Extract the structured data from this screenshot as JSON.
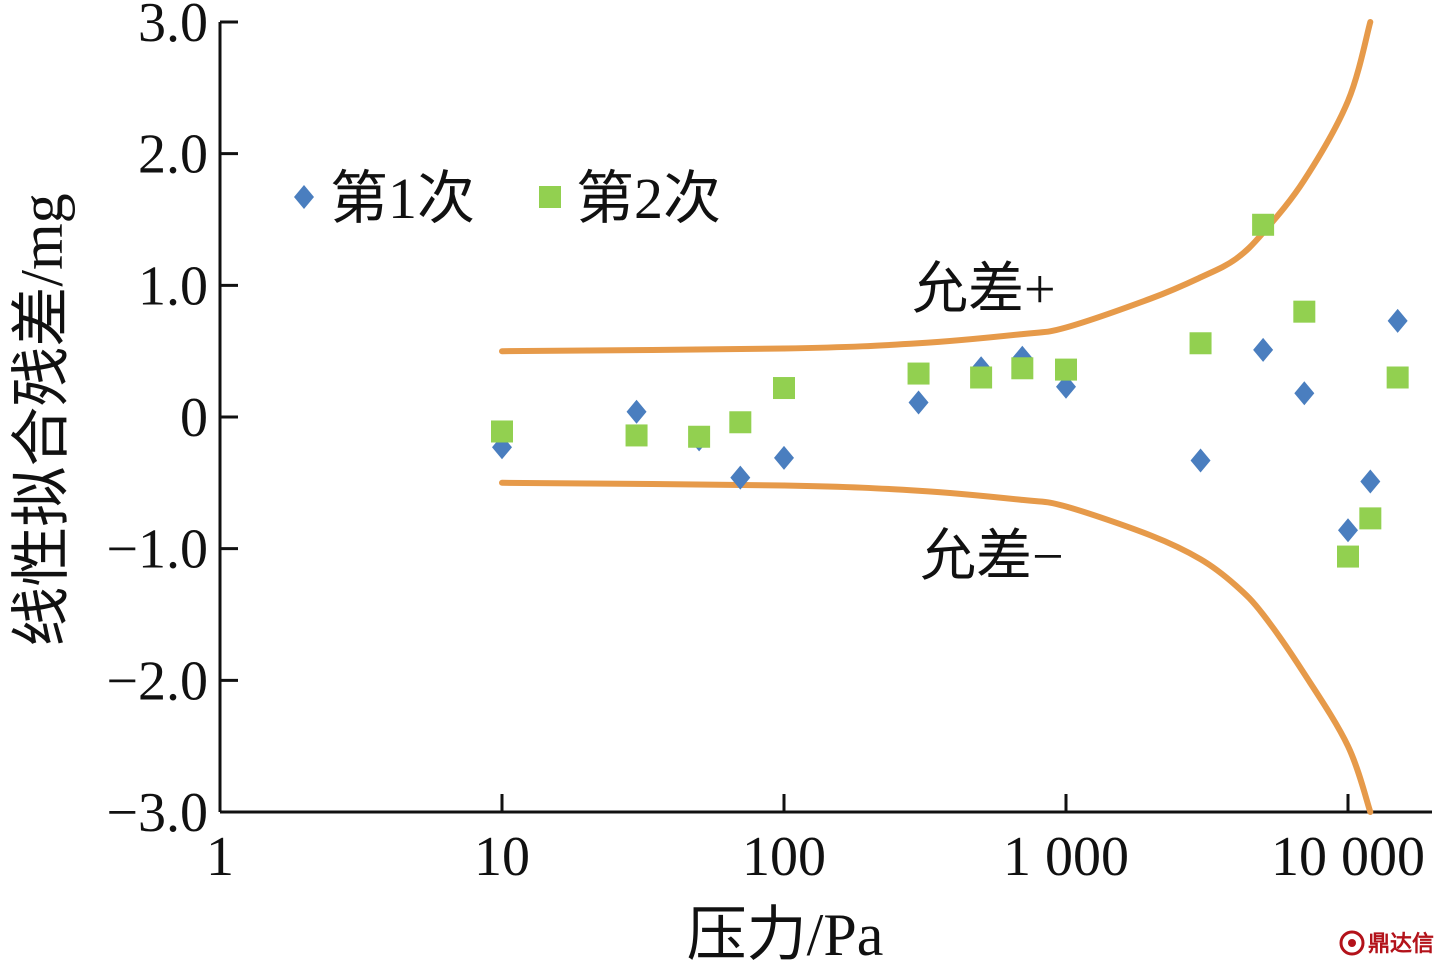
{
  "chart_data": {
    "type": "scatter",
    "title": "",
    "xlabel": "压力/Pa",
    "ylabel": "线性拟合残差/mg",
    "x_scale": "log",
    "xlim": [
      1,
      20000
    ],
    "ylim": [
      -3.0,
      3.0
    ],
    "x_ticks": [
      1,
      10,
      100,
      1000,
      10000
    ],
    "x_tick_labels": [
      "1",
      "10",
      "100",
      "1 000",
      "10 000"
    ],
    "y_ticks": [
      3.0,
      2.0,
      1.0,
      0,
      -1.0,
      -2.0,
      -3.0
    ],
    "y_tick_labels": [
      "3.0",
      "2.0",
      "1.0",
      "0",
      "−1.0",
      "−2.0",
      "−3.0"
    ],
    "grid": false,
    "legend_position": "top-left",
    "series": [
      {
        "name": "第1次",
        "marker": "diamond",
        "color": "#4a7ebf",
        "points": [
          [
            10,
            -0.23
          ],
          [
            30,
            0.04
          ],
          [
            50,
            -0.17
          ],
          [
            70,
            -0.46
          ],
          [
            100,
            -0.31
          ],
          [
            300,
            0.11
          ],
          [
            500,
            0.37
          ],
          [
            700,
            0.45
          ],
          [
            1000,
            0.23
          ],
          [
            3000,
            -0.33
          ],
          [
            5000,
            0.51
          ],
          [
            7000,
            0.18
          ],
          [
            10000,
            -0.86
          ],
          [
            12000,
            -0.49
          ],
          [
            15000,
            0.73
          ]
        ]
      },
      {
        "name": "第2次",
        "marker": "square",
        "color": "#92d050",
        "points": [
          [
            10,
            -0.11
          ],
          [
            30,
            -0.14
          ],
          [
            50,
            -0.15
          ],
          [
            70,
            -0.04
          ],
          [
            100,
            0.22
          ],
          [
            300,
            0.33
          ],
          [
            500,
            0.3
          ],
          [
            700,
            0.37
          ],
          [
            1000,
            0.36
          ],
          [
            3000,
            0.56
          ],
          [
            5000,
            1.46
          ],
          [
            7000,
            0.8
          ],
          [
            10000,
            -1.06
          ],
          [
            12000,
            -0.77
          ],
          [
            15000,
            0.3
          ]
        ]
      }
    ],
    "tolerance_color": "#e69a4a",
    "tolerance_upper": {
      "label": "允差+",
      "points": [
        [
          10,
          0.5
        ],
        [
          100,
          0.52
        ],
        [
          300,
          0.56
        ],
        [
          700,
          0.63
        ],
        [
          1000,
          0.68
        ],
        [
          2000,
          0.9
        ],
        [
          3000,
          1.06
        ],
        [
          4000,
          1.2
        ],
        [
          5000,
          1.4
        ],
        [
          7000,
          1.8
        ],
        [
          10000,
          2.4
        ],
        [
          12000,
          3.0
        ]
      ]
    },
    "tolerance_lower": {
      "label": "允差−",
      "points": [
        [
          10,
          -0.5
        ],
        [
          100,
          -0.52
        ],
        [
          300,
          -0.56
        ],
        [
          700,
          -0.63
        ],
        [
          1000,
          -0.68
        ],
        [
          2000,
          -0.9
        ],
        [
          3000,
          -1.08
        ],
        [
          4000,
          -1.28
        ],
        [
          5000,
          -1.5
        ],
        [
          7000,
          -1.95
        ],
        [
          10000,
          -2.5
        ],
        [
          12000,
          -3.0
        ]
      ]
    }
  },
  "watermark": {
    "text": "鼎达信",
    "color": "#b3121a"
  }
}
